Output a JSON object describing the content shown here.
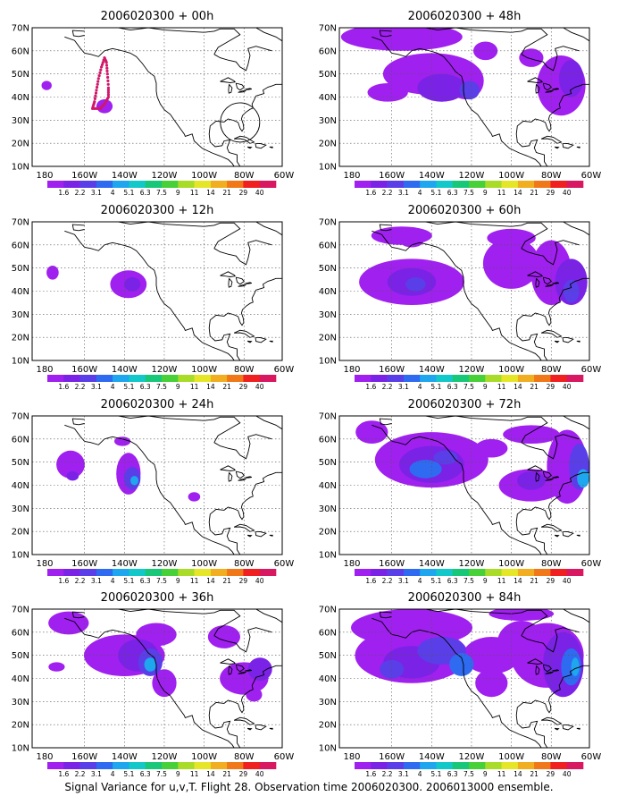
{
  "caption": "Signal Variance for u,v,T. Flight 28. Observation time 2006020300. 2006013000 ensemble.",
  "x_tick_labels": [
    "180",
    "160W",
    "140W",
    "120W",
    "100W",
    "80W",
    "60W"
  ],
  "y_tick_labels": [
    "10N",
    "20N",
    "30N",
    "40N",
    "50N",
    "60N",
    "70N"
  ],
  "colorbar": {
    "labels": [
      "1.6",
      "2.2",
      "3.1",
      "4",
      "5.1",
      "6.3",
      "7.5",
      "9",
      "11",
      "14",
      "21",
      "29",
      "40"
    ],
    "colors": [
      "#a020f0",
      "#7a22e6",
      "#5a3ee8",
      "#2f6bf0",
      "#1ea6ee",
      "#13c8c8",
      "#18c878",
      "#48d038",
      "#a8dc28",
      "#e6e628",
      "#f0ae20",
      "#f07818",
      "#f02020",
      "#d81860"
    ]
  },
  "panels": [
    {
      "title": "2006020300 + 00h"
    },
    {
      "title": "2006020300 + 48h"
    },
    {
      "title": "2006020300 + 12h"
    },
    {
      "title": "2006020300 + 60h"
    },
    {
      "title": "2006020300 + 24h"
    },
    {
      "title": "2006020300 + 72h"
    },
    {
      "title": "2006020300 + 36h"
    },
    {
      "title": "2006020300 + 84h"
    }
  ],
  "colors": {
    "fill_light": "#a020f0",
    "fill_mid": "#7a22e6",
    "fill_dark": "#5a3ee8",
    "fill_blue": "#2f6bf0",
    "fill_cyan": "#1ea6ee",
    "flight_track": "#d0186a",
    "grid": "#555555"
  }
}
